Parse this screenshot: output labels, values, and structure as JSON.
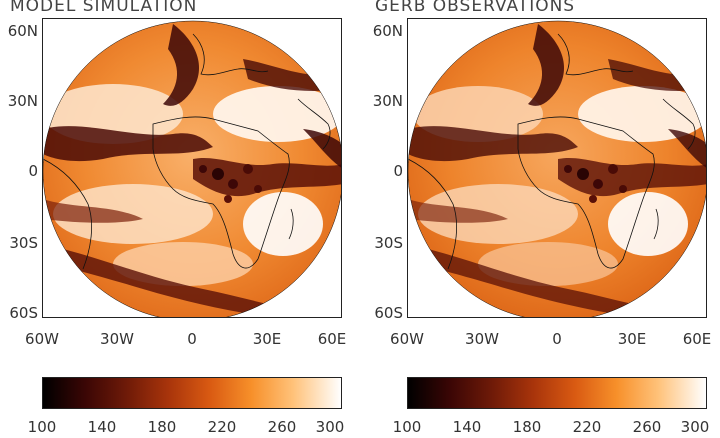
{
  "panels": [
    {
      "title": "MODEL SIMULATION",
      "lat_ticks": [
        "60N",
        "30N",
        "0",
        "30S",
        "60S"
      ],
      "lon_ticks": [
        "60W",
        "30W",
        "0",
        "30E",
        "60E"
      ],
      "colorbar_ticks": [
        "100",
        "140",
        "180",
        "220",
        "260",
        "300"
      ]
    },
    {
      "title": "GERB OBSERVATIONS",
      "lat_ticks": [
        "60N",
        "30N",
        "0",
        "30S",
        "60S"
      ],
      "lon_ticks": [
        "60W",
        "30W",
        "0",
        "30E",
        "60E"
      ],
      "colorbar_ticks": [
        "100",
        "140",
        "180",
        "220",
        "260",
        "300"
      ]
    }
  ],
  "colors": {
    "scale_low": "#000000",
    "scale_mid": "#d95a12",
    "scale_high": "#ffffff"
  }
}
